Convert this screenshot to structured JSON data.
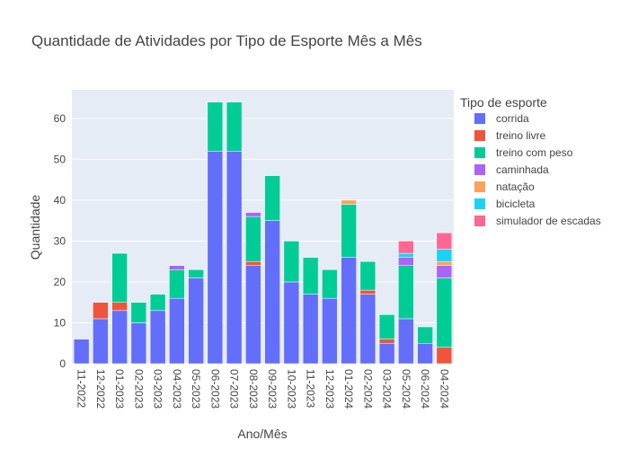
{
  "chart_data": {
    "type": "bar",
    "barmode": "stack",
    "title": "Quantidade de Atividades por Tipo de Esporte Mês a Mês",
    "xlabel": "Ano/Mês",
    "ylabel": "Quantidade",
    "ylim": [
      0,
      67
    ],
    "yticks": [
      0,
      10,
      20,
      30,
      40,
      50,
      60
    ],
    "grid": true,
    "legend_title": "Tipo de esporte",
    "legend_position": "right",
    "categories": [
      "11-2022",
      "12-2022",
      "01-2023",
      "02-2023",
      "03-2023",
      "04-2023",
      "05-2023",
      "06-2023",
      "07-2023",
      "08-2023",
      "09-2023",
      "10-2023",
      "11-2023",
      "12-2023",
      "01-2024",
      "02-2024",
      "03-2024",
      "05-2024",
      "06-2024",
      "04-2024"
    ],
    "series": [
      {
        "name": "corrida",
        "color": "#636efa",
        "values": [
          6,
          11,
          13,
          10,
          13,
          16,
          21,
          52,
          52,
          24,
          35,
          20,
          17,
          16,
          26,
          17,
          5,
          11,
          5,
          0
        ]
      },
      {
        "name": "treino livre",
        "color": "#ef553b",
        "values": [
          0,
          4,
          2,
          0,
          0,
          0,
          0,
          0,
          0,
          1,
          0,
          0,
          0,
          0,
          0,
          1,
          1,
          0,
          0,
          4
        ]
      },
      {
        "name": "treino com peso",
        "color": "#00cc96",
        "values": [
          0,
          0,
          12,
          5,
          4,
          7,
          2,
          12,
          12,
          11,
          11,
          10,
          9,
          7,
          13,
          7,
          6,
          13,
          4,
          17
        ]
      },
      {
        "name": "caminhada",
        "color": "#ab63fa",
        "values": [
          0,
          0,
          0,
          0,
          0,
          1,
          0,
          0,
          0,
          1,
          0,
          0,
          0,
          0,
          0,
          0,
          0,
          2,
          0,
          3
        ]
      },
      {
        "name": "natação",
        "color": "#ffa15a",
        "values": [
          0,
          0,
          0,
          0,
          0,
          0,
          0,
          0,
          0,
          0,
          0,
          0,
          0,
          0,
          1,
          0,
          0,
          0,
          0,
          1
        ]
      },
      {
        "name": "bicicleta",
        "color": "#19d3f3",
        "values": [
          0,
          0,
          0,
          0,
          0,
          0,
          0,
          0,
          0,
          0,
          0,
          0,
          0,
          0,
          0,
          0,
          0,
          1,
          0,
          3
        ]
      },
      {
        "name": "simulador de escadas",
        "color": "#ff6692",
        "values": [
          0,
          0,
          0,
          0,
          0,
          0,
          0,
          0,
          0,
          0,
          0,
          0,
          0,
          0,
          0,
          0,
          0,
          3,
          0,
          4
        ]
      }
    ]
  }
}
